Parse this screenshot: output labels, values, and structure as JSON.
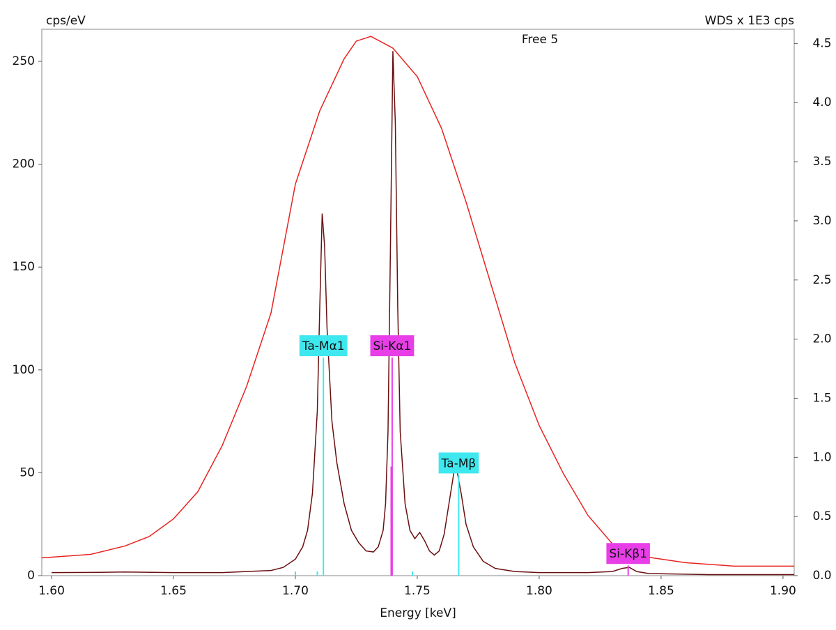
{
  "chart_data": {
    "type": "line",
    "title": "Free 5",
    "ylabel": "cps/eV",
    "y2label": "WDS x 1E3 cps",
    "xlabel": "Energy [keV]",
    "xlim": [
      1.596,
      1.9046
    ],
    "ylim": [
      0,
      265.6
    ],
    "y2lim": [
      0,
      4.62
    ],
    "xticks": [
      {
        "value": 1.6,
        "label": "1.60"
      },
      {
        "value": 1.65,
        "label": "1.65"
      },
      {
        "value": 1.7,
        "label": "1.70"
      },
      {
        "value": 1.75,
        "label": "1.75"
      },
      {
        "value": 1.8,
        "label": "1.80"
      },
      {
        "value": 1.85,
        "label": "1.85"
      },
      {
        "value": 1.9,
        "label": "1.90"
      }
    ],
    "yticks": [
      0,
      50,
      100,
      150,
      200,
      250
    ],
    "y2ticks": [
      {
        "value": 0,
        "label": "0.0"
      },
      0.5,
      {
        "value": 1,
        "label": "1.0"
      },
      1.5,
      {
        "value": 2,
        "label": "2.0"
      },
      2.5,
      {
        "value": 3,
        "label": "3.0"
      },
      3.5,
      {
        "value": 4,
        "label": "4.0"
      },
      4.5
    ],
    "series": [
      {
        "color": "#e8231f",
        "axis": "y2",
        "x": [
          1.596,
          1.616,
          1.63,
          1.64,
          1.65,
          1.66,
          1.67,
          1.68,
          1.69,
          1.7,
          1.71,
          1.72,
          1.725,
          1.731,
          1.74,
          1.75,
          1.76,
          1.77,
          1.78,
          1.79,
          1.8,
          1.81,
          1.82,
          1.83,
          1.84,
          1.86,
          1.88,
          1.9046
        ],
        "values": [
          0.15,
          0.18,
          0.25,
          0.33,
          0.48,
          0.71,
          1.1,
          1.6,
          2.22,
          3.31,
          3.93,
          4.37,
          4.52,
          4.56,
          4.46,
          4.22,
          3.78,
          3.16,
          2.48,
          1.8,
          1.27,
          0.86,
          0.51,
          0.27,
          0.17,
          0.11,
          0.08,
          0.08
        ]
      },
      {
        "color": "#6b0f10",
        "x": [
          1.6,
          1.62,
          1.63,
          1.65,
          1.67,
          1.69,
          1.695,
          1.7,
          1.703,
          1.705,
          1.707,
          1.709,
          1.71,
          1.711,
          1.712,
          1.713,
          1.715,
          1.717,
          1.72,
          1.723,
          1.726,
          1.729,
          1.732,
          1.734,
          1.736,
          1.737,
          1.738,
          1.739,
          1.74,
          1.741,
          1.742,
          1.743,
          1.745,
          1.747,
          1.749,
          1.751,
          1.753,
          1.755,
          1.757,
          1.759,
          1.761,
          1.763,
          1.765,
          1.766,
          1.768,
          1.77,
          1.773,
          1.777,
          1.782,
          1.79,
          1.8,
          1.82,
          1.83,
          1.834,
          1.837,
          1.84,
          1.845,
          1.87,
          1.9046
        ],
        "values": [
          1.5,
          1.6,
          1.8,
          1.5,
          1.5,
          2.5,
          4,
          8,
          14,
          22,
          40,
          80,
          130,
          176,
          160,
          120,
          75,
          55,
          35,
          22,
          16,
          12,
          11.5,
          14,
          22,
          35,
          70,
          160,
          255,
          220,
          130,
          70,
          35,
          22,
          18,
          21,
          17,
          12,
          10,
          12,
          20,
          35,
          50,
          53,
          40,
          25,
          14,
          7,
          3.5,
          2,
          1.5,
          1.5,
          2,
          3.5,
          4,
          2,
          1,
          0.5,
          0.5
        ]
      }
    ],
    "markers": [
      {
        "color": "#3ee8ee",
        "x": [
          1.7115,
          1.767,
          1.7,
          1.709,
          1.748
        ],
        "values": [
          106,
          49,
          2,
          2,
          2
        ],
        "labels": [
          "Ta-Mα1",
          "Ta-Mβ",
          null,
          null,
          null
        ]
      },
      {
        "color": "#e83ee8",
        "x": [
          1.7397,
          1.8365,
          1.7393
        ],
        "values": [
          106,
          5,
          53
        ],
        "labels": [
          "Si-Kα1",
          "Si-Kβ1",
          null
        ]
      }
    ]
  }
}
